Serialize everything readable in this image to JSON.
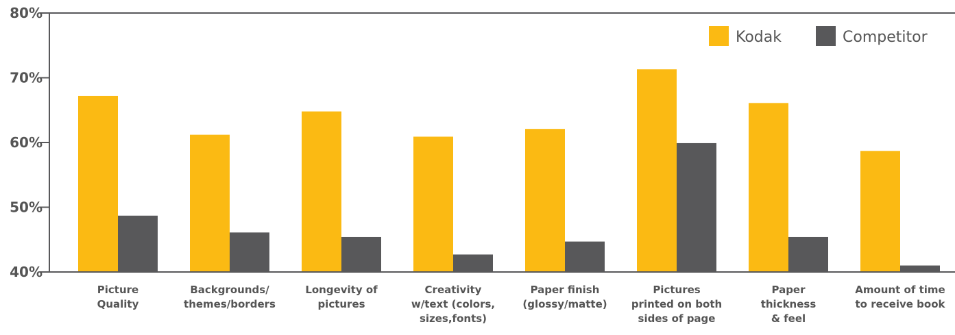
{
  "chart_data": {
    "type": "bar",
    "categories": [
      [
        "Picture",
        "Quality"
      ],
      [
        "Backgrounds/",
        "themes/borders"
      ],
      [
        "Longevity of",
        "pictures"
      ],
      [
        "Creativity",
        "w/text (colors,",
        "sizes,fonts)"
      ],
      [
        "Paper finish",
        "(glossy/matte)"
      ],
      [
        "Pictures",
        "printed on both",
        "sides of page"
      ],
      [
        "Paper",
        "thickness",
        "& feel"
      ],
      [
        "Amount of time",
        "to receive book"
      ]
    ],
    "series": [
      {
        "name": "Kodak",
        "color": "#FBBA13",
        "values": [
          67.2,
          61.2,
          64.8,
          60.9,
          62.1,
          71.3,
          66.1,
          58.7
        ]
      },
      {
        "name": "Competitor",
        "color": "#58585A",
        "values": [
          48.7,
          46.1,
          45.4,
          42.7,
          44.7,
          59.9,
          45.4,
          41.0
        ]
      }
    ],
    "ylim": [
      40,
      80
    ],
    "yticks": [
      40,
      50,
      60,
      70,
      80
    ],
    "ytick_labels": [
      "40%",
      "50%",
      "60%",
      "70%",
      "80%"
    ],
    "legend_position": "top-right",
    "grid": false,
    "axis_color": "#58585A",
    "title": "",
    "xlabel": "",
    "ylabel": ""
  }
}
